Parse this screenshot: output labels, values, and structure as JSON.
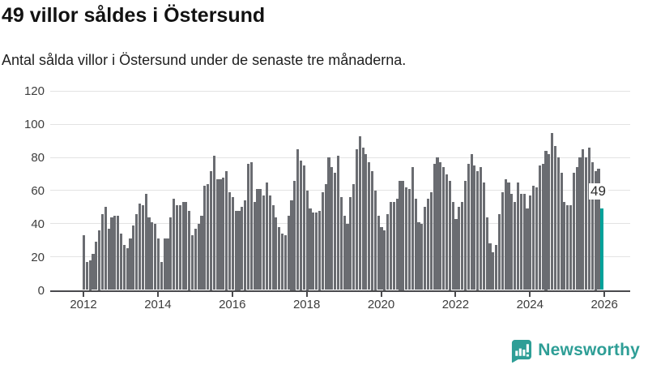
{
  "header": {
    "title": "49 villor såldes i Östersund",
    "subtitle": "Antal sålda villor i Östersund under de senaste tre månaderna."
  },
  "chart_data": {
    "type": "bar",
    "title": "49 villor såldes i Östersund",
    "subtitle": "Antal sålda villor i Östersund under de senaste tre månaderna.",
    "frequency": "monthly",
    "start_period": "2012-01",
    "end_period": "2025-12",
    "values": [
      33,
      17,
      18,
      22,
      29,
      36,
      46,
      50,
      37,
      44,
      45,
      45,
      34,
      27,
      25,
      31,
      39,
      46,
      52,
      51,
      58,
      44,
      41,
      40,
      31,
      17,
      31,
      31,
      44,
      55,
      51,
      51,
      53,
      53,
      48,
      33,
      37,
      40,
      45,
      63,
      64,
      72,
      81,
      67,
      67,
      68,
      72,
      59,
      56,
      48,
      48,
      50,
      54,
      76,
      77,
      53,
      61,
      61,
      57,
      65,
      57,
      51,
      44,
      38,
      34,
      33,
      45,
      54,
      66,
      85,
      78,
      75,
      60,
      49,
      47,
      47,
      48,
      59,
      64,
      80,
      74,
      71,
      81,
      56,
      45,
      40,
      56,
      64,
      85,
      93,
      86,
      82,
      77,
      72,
      60,
      45,
      38,
      36,
      46,
      53,
      53,
      55,
      66,
      66,
      62,
      61,
      74,
      55,
      41,
      40,
      50,
      55,
      59,
      76,
      80,
      77,
      74,
      70,
      66,
      53,
      43,
      50,
      53,
      66,
      76,
      82,
      75,
      72,
      74,
      65,
      44,
      28,
      23,
      27,
      46,
      59,
      67,
      65,
      58,
      53,
      65,
      58,
      58,
      49,
      57,
      63,
      62,
      75,
      76,
      84,
      82,
      95,
      87,
      80,
      71,
      53,
      51,
      51,
      71,
      74,
      80,
      85,
      80,
      86,
      77,
      72,
      73,
      49
    ],
    "highlight": {
      "index": 167,
      "value": 49,
      "label": "49"
    },
    "ylim": [
      0,
      120
    ],
    "yticks": [
      0,
      20,
      40,
      60,
      80,
      100,
      120
    ],
    "xticks": [
      "2012",
      "2014",
      "2016",
      "2018",
      "2020",
      "2022",
      "2024",
      "2026"
    ],
    "grid": true,
    "legend": false,
    "colors": {
      "bar": "#6a6c71",
      "highlight": "#00a29a"
    }
  },
  "footer": {
    "brand": "Newsworthy",
    "brand_color": "#2e9e96"
  }
}
